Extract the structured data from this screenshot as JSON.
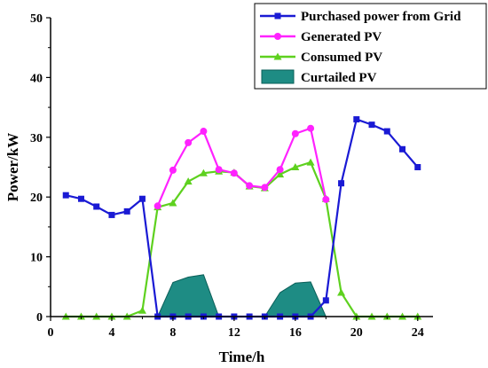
{
  "chart_data": {
    "type": "line",
    "xlabel": "Time/h",
    "ylabel": "Power/kW",
    "xlim": [
      0,
      25
    ],
    "ylim": [
      0,
      50
    ],
    "x_ticks": [
      0,
      4,
      8,
      12,
      16,
      20,
      24
    ],
    "y_ticks": [
      0,
      10,
      20,
      30,
      40,
      50
    ],
    "x_tick_labels": [
      "0",
      "4",
      "8",
      "12",
      "16",
      "20",
      "24"
    ],
    "y_tick_labels": [
      "0",
      "10",
      "20",
      "30",
      "40",
      "50"
    ],
    "grid": false,
    "legend_position": "top-right",
    "series": [
      {
        "name": "Purchased power from Grid",
        "kind": "line",
        "marker": "square",
        "color": "#1a1ad4",
        "x": [
          1,
          2,
          3,
          4,
          5,
          6,
          7,
          8,
          9,
          10,
          11,
          12,
          13,
          14,
          15,
          16,
          17,
          18,
          19,
          20,
          21,
          22,
          23,
          24
        ],
        "values": [
          20.3,
          19.7,
          18.4,
          17.0,
          17.6,
          19.7,
          0,
          0,
          0,
          0,
          0,
          0,
          0,
          0,
          0,
          0,
          0,
          2.7,
          22.3,
          33.0,
          32.1,
          31.0,
          28.0,
          25.0
        ]
      },
      {
        "name": "Generated PV",
        "kind": "line",
        "marker": "circle",
        "color": "#ff22ff",
        "x": [
          7,
          8,
          9,
          10,
          11,
          12,
          13,
          14,
          15,
          16,
          17,
          18
        ],
        "values": [
          18.5,
          24.5,
          29.1,
          31.0,
          24.6,
          24.0,
          21.9,
          21.6,
          24.6,
          30.6,
          31.5,
          19.6
        ]
      },
      {
        "name": "Consumed PV",
        "kind": "line",
        "marker": "triangle",
        "color": "#5ed11f",
        "x": [
          1,
          2,
          3,
          4,
          5,
          6,
          7,
          8,
          9,
          10,
          11,
          12,
          13,
          14,
          15,
          16,
          17,
          18,
          19,
          20,
          21,
          22,
          23,
          24
        ],
        "values": [
          0,
          0,
          0,
          0,
          0,
          1.0,
          18.3,
          19.0,
          22.6,
          24.0,
          24.3,
          24.1,
          21.8,
          21.5,
          23.8,
          25.0,
          25.8,
          19.7,
          4.0,
          0,
          0,
          0,
          0,
          0
        ]
      },
      {
        "name": "Curtailed PV",
        "kind": "area",
        "color": "#1e8c84",
        "segments": [
          {
            "x": [
              7,
              8,
              9,
              10,
              11
            ],
            "values": [
              0,
              5.7,
              6.6,
              7.0,
              0
            ]
          },
          {
            "x": [
              14,
              15,
              16,
              17,
              18
            ],
            "values": [
              0,
              4.0,
              5.6,
              5.8,
              0
            ]
          }
        ]
      }
    ]
  }
}
